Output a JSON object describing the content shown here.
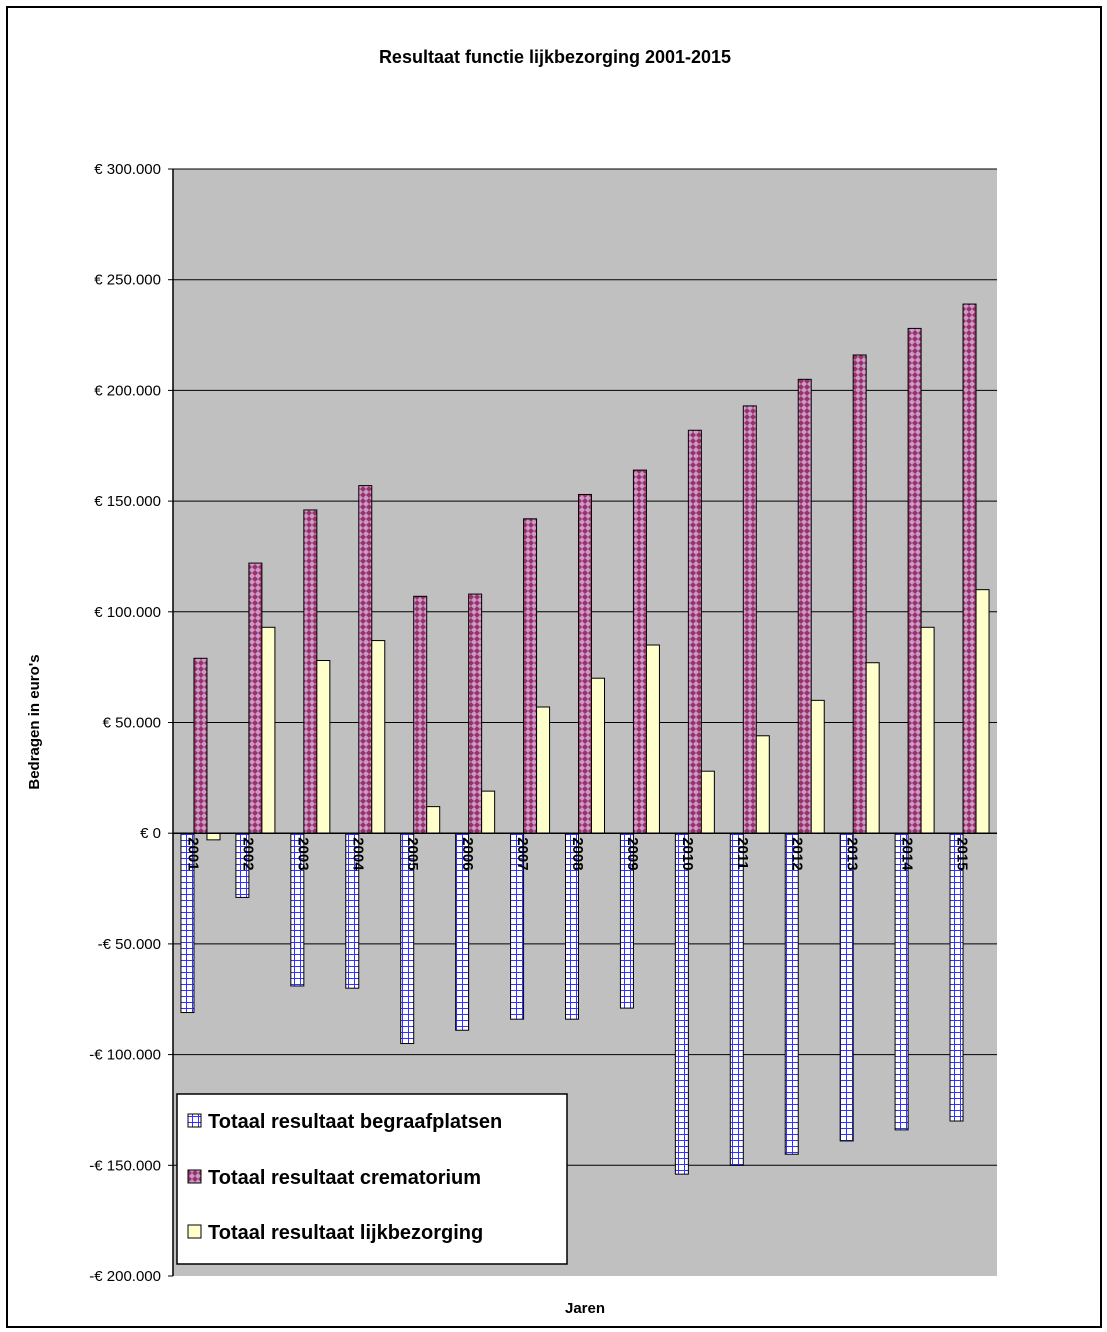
{
  "chart_data": {
    "type": "bar",
    "title": "Resultaat functie lijkbezorging 2001-2015",
    "xlabel": "Jaren",
    "ylabel": "Bedragen in euro's",
    "ylim": [
      -200000,
      300000
    ],
    "y_ticks": [
      300000,
      250000,
      200000,
      150000,
      100000,
      50000,
      0,
      -50000,
      -100000,
      -150000,
      -200000
    ],
    "y_tick_labels": [
      "€ 300.000",
      "€ 250.000",
      "€ 200.000",
      "€ 150.000",
      "€ 100.000",
      "€ 50.000",
      "€ 0",
      "-€ 50.000",
      "-€ 100.000",
      "-€ 150.000",
      "-€ 200.000"
    ],
    "grid": true,
    "legend_position": "bottom-left",
    "categories": [
      "2001",
      "2002",
      "2003",
      "2004",
      "2005",
      "2006",
      "2007",
      "2008",
      "2009",
      "2010",
      "2011",
      "2012",
      "2013",
      "2014",
      "2015"
    ],
    "series": [
      {
        "name": "Totaal resultaat begraafplatsen",
        "color": "#3333ff",
        "pattern": "grid",
        "values": [
          -81000,
          -29000,
          -69000,
          -70000,
          -95000,
          -89000,
          -84000,
          -84000,
          -79000,
          -154000,
          -150000,
          -145000,
          -139000,
          -134000,
          -130000
        ]
      },
      {
        "name": "Totaal resultaat crematorium",
        "color": "#993366",
        "pattern": "diamond",
        "values": [
          79000,
          122000,
          146000,
          157000,
          107000,
          108000,
          142000,
          153000,
          164000,
          182000,
          193000,
          205000,
          216000,
          228000,
          239000
        ]
      },
      {
        "name": "Totaal resultaat lijkbezorging",
        "color": "#ffffcc",
        "pattern": "solid",
        "values": [
          -3000,
          93000,
          78000,
          87000,
          12000,
          19000,
          57000,
          70000,
          85000,
          28000,
          44000,
          60000,
          77000,
          93000,
          110000
        ]
      }
    ]
  }
}
